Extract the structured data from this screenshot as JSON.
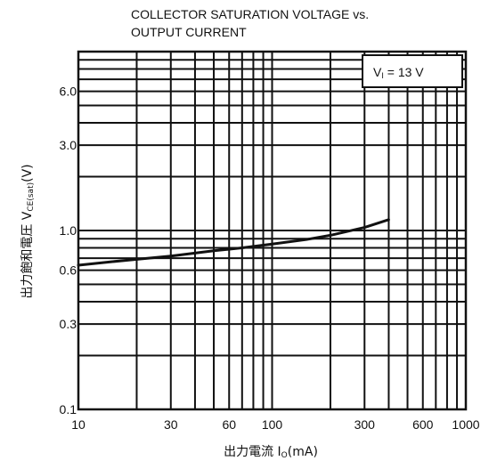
{
  "chart_data": {
    "type": "line",
    "title": [
      "COLLECTOR SATURATION VOLTAGE vs.",
      "OUTPUT CURRENT"
    ],
    "xlabel": {
      "main": "出力電流 I",
      "sub": "O",
      "unit": "(mA)"
    },
    "ylabel": {
      "main": "出力飽和電圧 V",
      "sub": "CE(sat)",
      "unit": "(V)"
    },
    "x_scale": "log",
    "y_scale": "log",
    "xlim": [
      10,
      1000
    ],
    "ylim": [
      0.1,
      10
    ],
    "x_ticks": [
      10,
      30,
      60,
      100,
      300,
      600,
      1000
    ],
    "x_tick_labels": [
      "10",
      "30",
      "60",
      "100",
      "300",
      "600",
      "1000"
    ],
    "y_ticks": [
      0.1,
      0.3,
      0.6,
      1.0,
      3.0,
      6.0
    ],
    "y_tick_labels": [
      "0.1",
      "0.3",
      "0.6",
      "1.0",
      "3.0",
      "6.0"
    ],
    "grid": true,
    "legend": {
      "main": "V",
      "sub": "I",
      "rest": " = 13 V",
      "placement": "top-right"
    },
    "series": [
      {
        "x": [
          10,
          15,
          20,
          30,
          50,
          70,
          100,
          150,
          200,
          300,
          400
        ],
        "y": [
          0.64,
          0.67,
          0.69,
          0.72,
          0.77,
          0.8,
          0.84,
          0.89,
          0.94,
          1.04,
          1.15
        ]
      }
    ],
    "colors": {
      "line": "#111111",
      "grid": "#111111",
      "background": "#ffffff"
    }
  }
}
